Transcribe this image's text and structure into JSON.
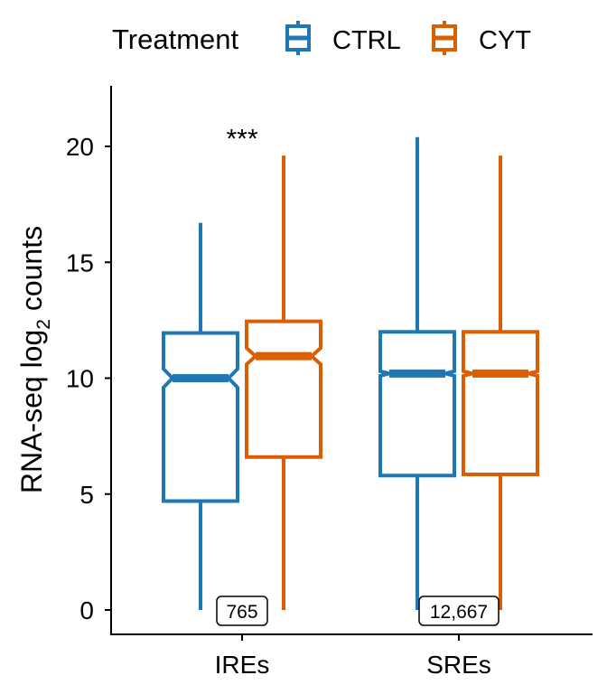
{
  "legend": {
    "title": "Treatment",
    "entries": [
      {
        "label": "CTRL",
        "color": "#1f78b4"
      },
      {
        "label": "CYT",
        "color": "#d95f02"
      }
    ]
  },
  "chart_data": {
    "type": "boxplot",
    "notched": true,
    "ylabel_main": "RNA-seq log",
    "ylabel_sub": "2",
    "ylabel_tail": " counts",
    "ylim": [
      -1,
      22.5
    ],
    "yticks": [
      0,
      5,
      10,
      15,
      20
    ],
    "categories": [
      "IREs",
      "SREs"
    ],
    "series": [
      {
        "name": "CTRL",
        "color": "#1f78b4",
        "boxes": [
          {
            "min": 0,
            "q1": 4.7,
            "median": 10.0,
            "q3": 11.95,
            "max": 16.7,
            "notch_low": 9.6,
            "notch_high": 10.4
          },
          {
            "min": 0,
            "q1": 5.8,
            "median": 10.2,
            "q3": 12.0,
            "max": 20.4,
            "notch_low": 10.1,
            "notch_high": 10.3
          }
        ]
      },
      {
        "name": "CYT",
        "color": "#d95f02",
        "boxes": [
          {
            "min": 0,
            "q1": 6.6,
            "median": 10.95,
            "q3": 12.45,
            "max": 19.6,
            "notch_low": 10.6,
            "notch_high": 11.3
          },
          {
            "min": 0,
            "q1": 5.85,
            "median": 10.2,
            "q3": 12.0,
            "max": 19.6,
            "notch_low": 10.1,
            "notch_high": 10.3
          }
        ]
      }
    ],
    "annotations": [
      {
        "category": "IREs",
        "text": "***",
        "y": 20.4
      }
    ],
    "counts": [
      {
        "category": "IREs",
        "label": "765"
      },
      {
        "category": "SREs",
        "label": "12,667"
      }
    ]
  }
}
